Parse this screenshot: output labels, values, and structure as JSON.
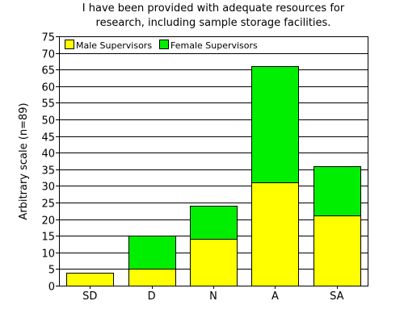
{
  "chart_data": {
    "type": "bar",
    "stacked": true,
    "title": "I have been provided with adequate resources for research, including sample storage facilities.",
    "title_lines": [
      "I have been provided with adequate resources for",
      "research, including sample storage facilities."
    ],
    "xlabel": "",
    "ylabel": "Arbitrary scale (n=89)",
    "ylim": [
      0,
      75
    ],
    "yticks": [
      0,
      5,
      10,
      15,
      20,
      25,
      30,
      35,
      40,
      45,
      50,
      55,
      60,
      65,
      70,
      75
    ],
    "categories": [
      "SD",
      "D",
      "N",
      "A",
      "SA"
    ],
    "series": [
      {
        "name": "Male Supervisors",
        "color": "#ffff00",
        "values": [
          4,
          5,
          14,
          31,
          21
        ]
      },
      {
        "name": "Female Supervisors",
        "color": "#00ee00",
        "values": [
          0,
          10,
          10,
          35,
          15
        ]
      }
    ],
    "grid": true,
    "legend_position": "top-left"
  }
}
